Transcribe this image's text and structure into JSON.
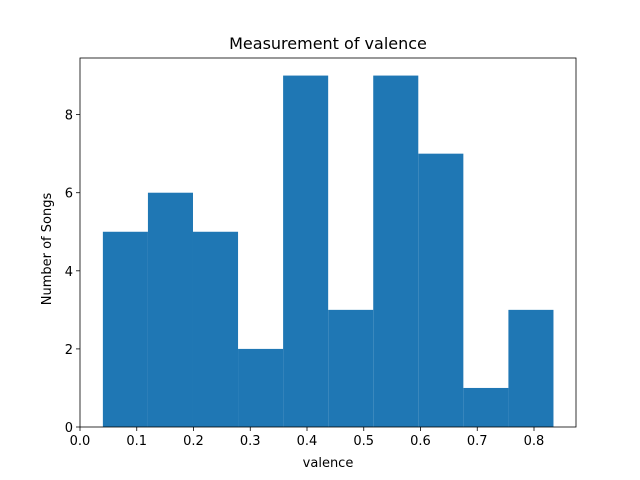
{
  "chart_data": {
    "type": "bar",
    "title": "Measurement of valence",
    "xlabel": "valence",
    "ylabel": "Number of Songs",
    "bin_edges": [
      0.0403,
      0.1197,
      0.1991,
      0.2785,
      0.3579,
      0.4373,
      0.5167,
      0.5961,
      0.6755,
      0.7549,
      0.8343
    ],
    "values": [
      5,
      6,
      5,
      2,
      9,
      3,
      9,
      7,
      1,
      3
    ],
    "xlim": [
      0.0,
      0.874
    ],
    "ylim": [
      0,
      9.45
    ],
    "xticks": [
      0.0,
      0.1,
      0.2,
      0.3,
      0.4,
      0.5,
      0.6,
      0.7,
      0.8
    ],
    "xtick_labels": [
      "0.0",
      "0.1",
      "0.2",
      "0.3",
      "0.4",
      "0.5",
      "0.6",
      "0.7",
      "0.8"
    ],
    "yticks": [
      0,
      2,
      4,
      6,
      8
    ],
    "ytick_labels": [
      "0",
      "2",
      "4",
      "6",
      "8"
    ],
    "bar_color": "#1f77b4",
    "grid": false
  }
}
